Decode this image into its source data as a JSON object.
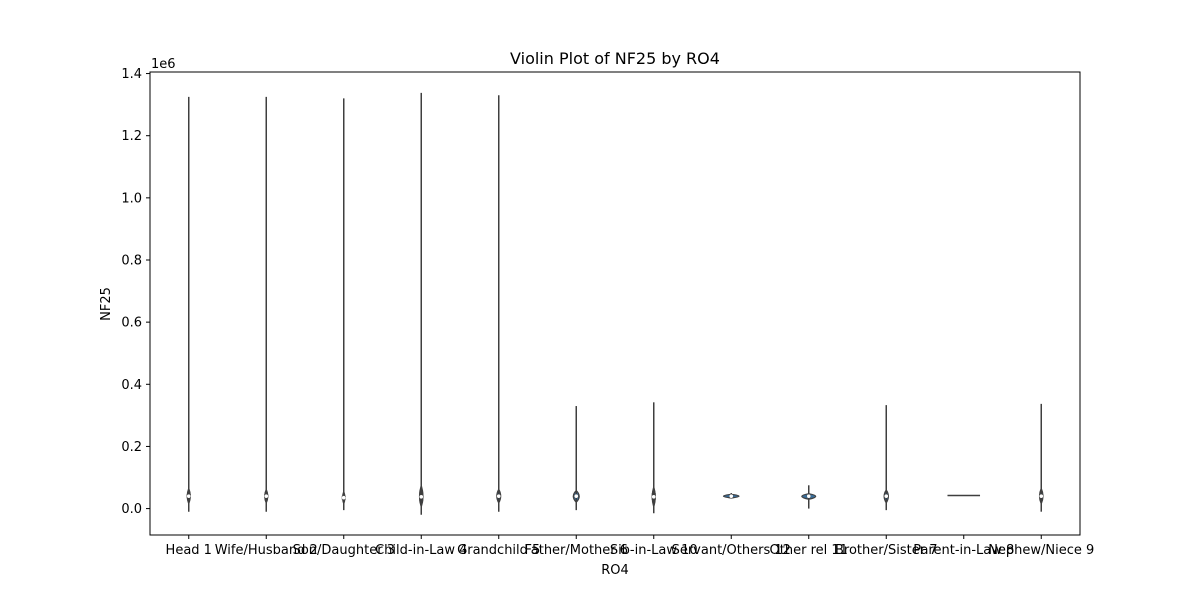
{
  "chart_data": {
    "type": "violin",
    "title": "Violin Plot of NF25 by RO4",
    "xlabel": "RO4",
    "ylabel": "NF25",
    "y_offset_text": "1e6",
    "ylim": [
      -85000,
      1405000
    ],
    "yticks": [
      0,
      200000,
      400000,
      600000,
      800000,
      1000000,
      1200000,
      1400000
    ],
    "ytick_labels": [
      "0.0",
      "0.2",
      "0.4",
      "0.6",
      "0.8",
      "1.0",
      "1.2",
      "1.4"
    ],
    "categories": [
      "Head 1",
      "Wife/Husband 2",
      "Son/Daughter 3",
      "Child-in-Law 4",
      "Grandchild 5",
      "Father/Mother 6",
      "Sib-in-Law 10",
      "Servant/Others 12",
      "Other rel 11",
      "Brother/Sister 7",
      "Parent-in-Law 8",
      "Nephew/Niece 9"
    ],
    "series": [
      {
        "min": -10000,
        "max": 1325000,
        "median": 40000,
        "q1": 33000,
        "q3": 47000,
        "peak_half_width": 0.08,
        "body_low": 15000,
        "body_high": 65000
      },
      {
        "min": -10000,
        "max": 1325000,
        "median": 40000,
        "q1": 34000,
        "q3": 46000,
        "peak_half_width": 0.08,
        "body_low": 18000,
        "body_high": 62000
      },
      {
        "min": -5000,
        "max": 1320000,
        "median": 35000,
        "q1": 29000,
        "q3": 41000,
        "peak_half_width": 0.06,
        "body_low": 15000,
        "body_high": 55000
      },
      {
        "min": -20000,
        "max": 1338000,
        "median": 38000,
        "q1": 25000,
        "q3": 52000,
        "peak_half_width": 0.09,
        "body_low": 5000,
        "body_high": 75000
      },
      {
        "min": -10000,
        "max": 1330000,
        "median": 40000,
        "q1": 33000,
        "q3": 47000,
        "peak_half_width": 0.1,
        "body_low": 18000,
        "body_high": 62000
      },
      {
        "min": -5000,
        "max": 330000,
        "median": 40000,
        "q1": 35000,
        "q3": 45000,
        "peak_half_width": 0.15,
        "body_low": 20000,
        "body_high": 58000
      },
      {
        "min": -15000,
        "max": 342000,
        "median": 38000,
        "q1": 28000,
        "q3": 50000,
        "peak_half_width": 0.08,
        "body_low": 5000,
        "body_high": 70000
      },
      {
        "min": 34000,
        "max": 50000,
        "median": 40000,
        "q1": 38000,
        "q3": 42000,
        "peak_half_width": 0.4,
        "body_low": 34000,
        "body_high": 46000
      },
      {
        "min": 0,
        "max": 75000,
        "median": 40000,
        "q1": 36000,
        "q3": 44000,
        "peak_half_width": 0.36,
        "body_low": 30000,
        "body_high": 48000
      },
      {
        "min": -5000,
        "max": 333000,
        "median": 40000,
        "q1": 34000,
        "q3": 46000,
        "peak_half_width": 0.11,
        "body_low": 18000,
        "body_high": 60000
      },
      {
        "min": 42000,
        "max": 42000,
        "median": 42000,
        "q1": 42000,
        "q3": 42000,
        "peak_half_width": 0.42,
        "body_low": 42000,
        "body_high": 42000
      },
      {
        "min": -10000,
        "max": 337000,
        "median": 40000,
        "q1": 33000,
        "q3": 47000,
        "peak_half_width": 0.09,
        "body_low": 15000,
        "body_high": 65000
      }
    ],
    "colors": {
      "violin_fill": "#3a6f9c",
      "violin_edge": "#3f3f3f",
      "box": "#3f3f3f",
      "axis": "#000000"
    },
    "grid": false,
    "legend": "none"
  }
}
